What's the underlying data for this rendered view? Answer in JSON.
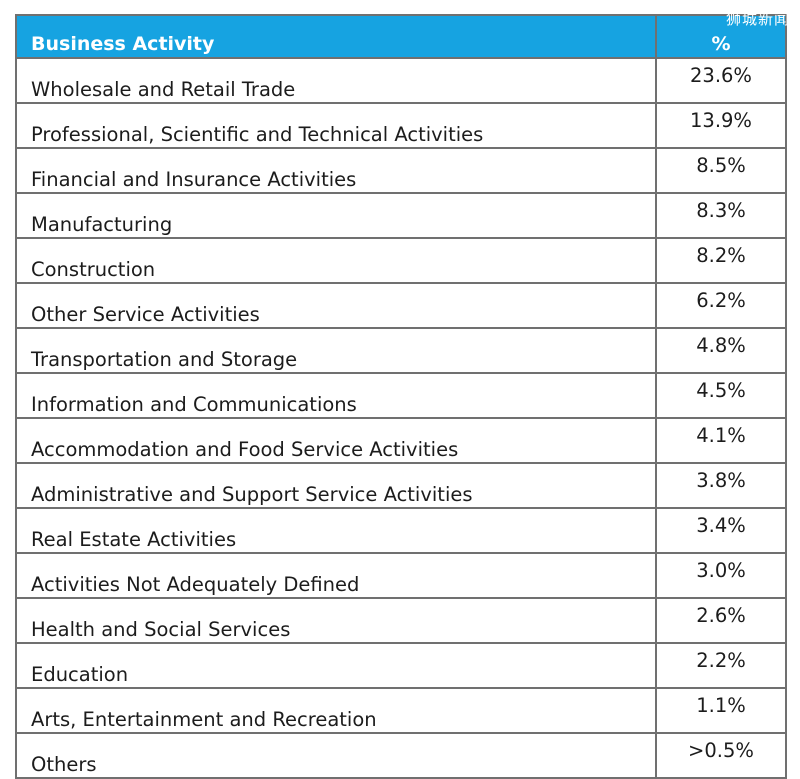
{
  "watermark": "狮城新闻",
  "chart_data": {
    "type": "table",
    "columns": [
      "Business Activity",
      "%"
    ],
    "rows": [
      {
        "activity": "Wholesale and Retail Trade",
        "percent": "23.6%"
      },
      {
        "activity": "Professional, Scientific and Technical Activities",
        "percent": "13.9%"
      },
      {
        "activity": "Financial and Insurance Activities",
        "percent": "8.5%"
      },
      {
        "activity": "Manufacturing",
        "percent": "8.3%"
      },
      {
        "activity": "Construction",
        "percent": "8.2%"
      },
      {
        "activity": "Other Service Activities",
        "percent": "6.2%"
      },
      {
        "activity": "Transportation and Storage",
        "percent": "4.8%"
      },
      {
        "activity": "Information and Communications",
        "percent": "4.5%"
      },
      {
        "activity": "Accommodation and Food Service Activities",
        "percent": "4.1%"
      },
      {
        "activity": "Administrative and Support Service Activities",
        "percent": "3.8%"
      },
      {
        "activity": "Real Estate Activities",
        "percent": "3.4%"
      },
      {
        "activity": "Activities Not Adequately Defined",
        "percent": "3.0%"
      },
      {
        "activity": "Health and Social Services",
        "percent": "2.6%"
      },
      {
        "activity": "Education",
        "percent": "2.2%"
      },
      {
        "activity": "Arts, Entertainment and Recreation",
        "percent": "1.1%"
      },
      {
        "activity": "Others",
        "percent": ">0.5%"
      }
    ],
    "header_color": "#16a3e1"
  }
}
